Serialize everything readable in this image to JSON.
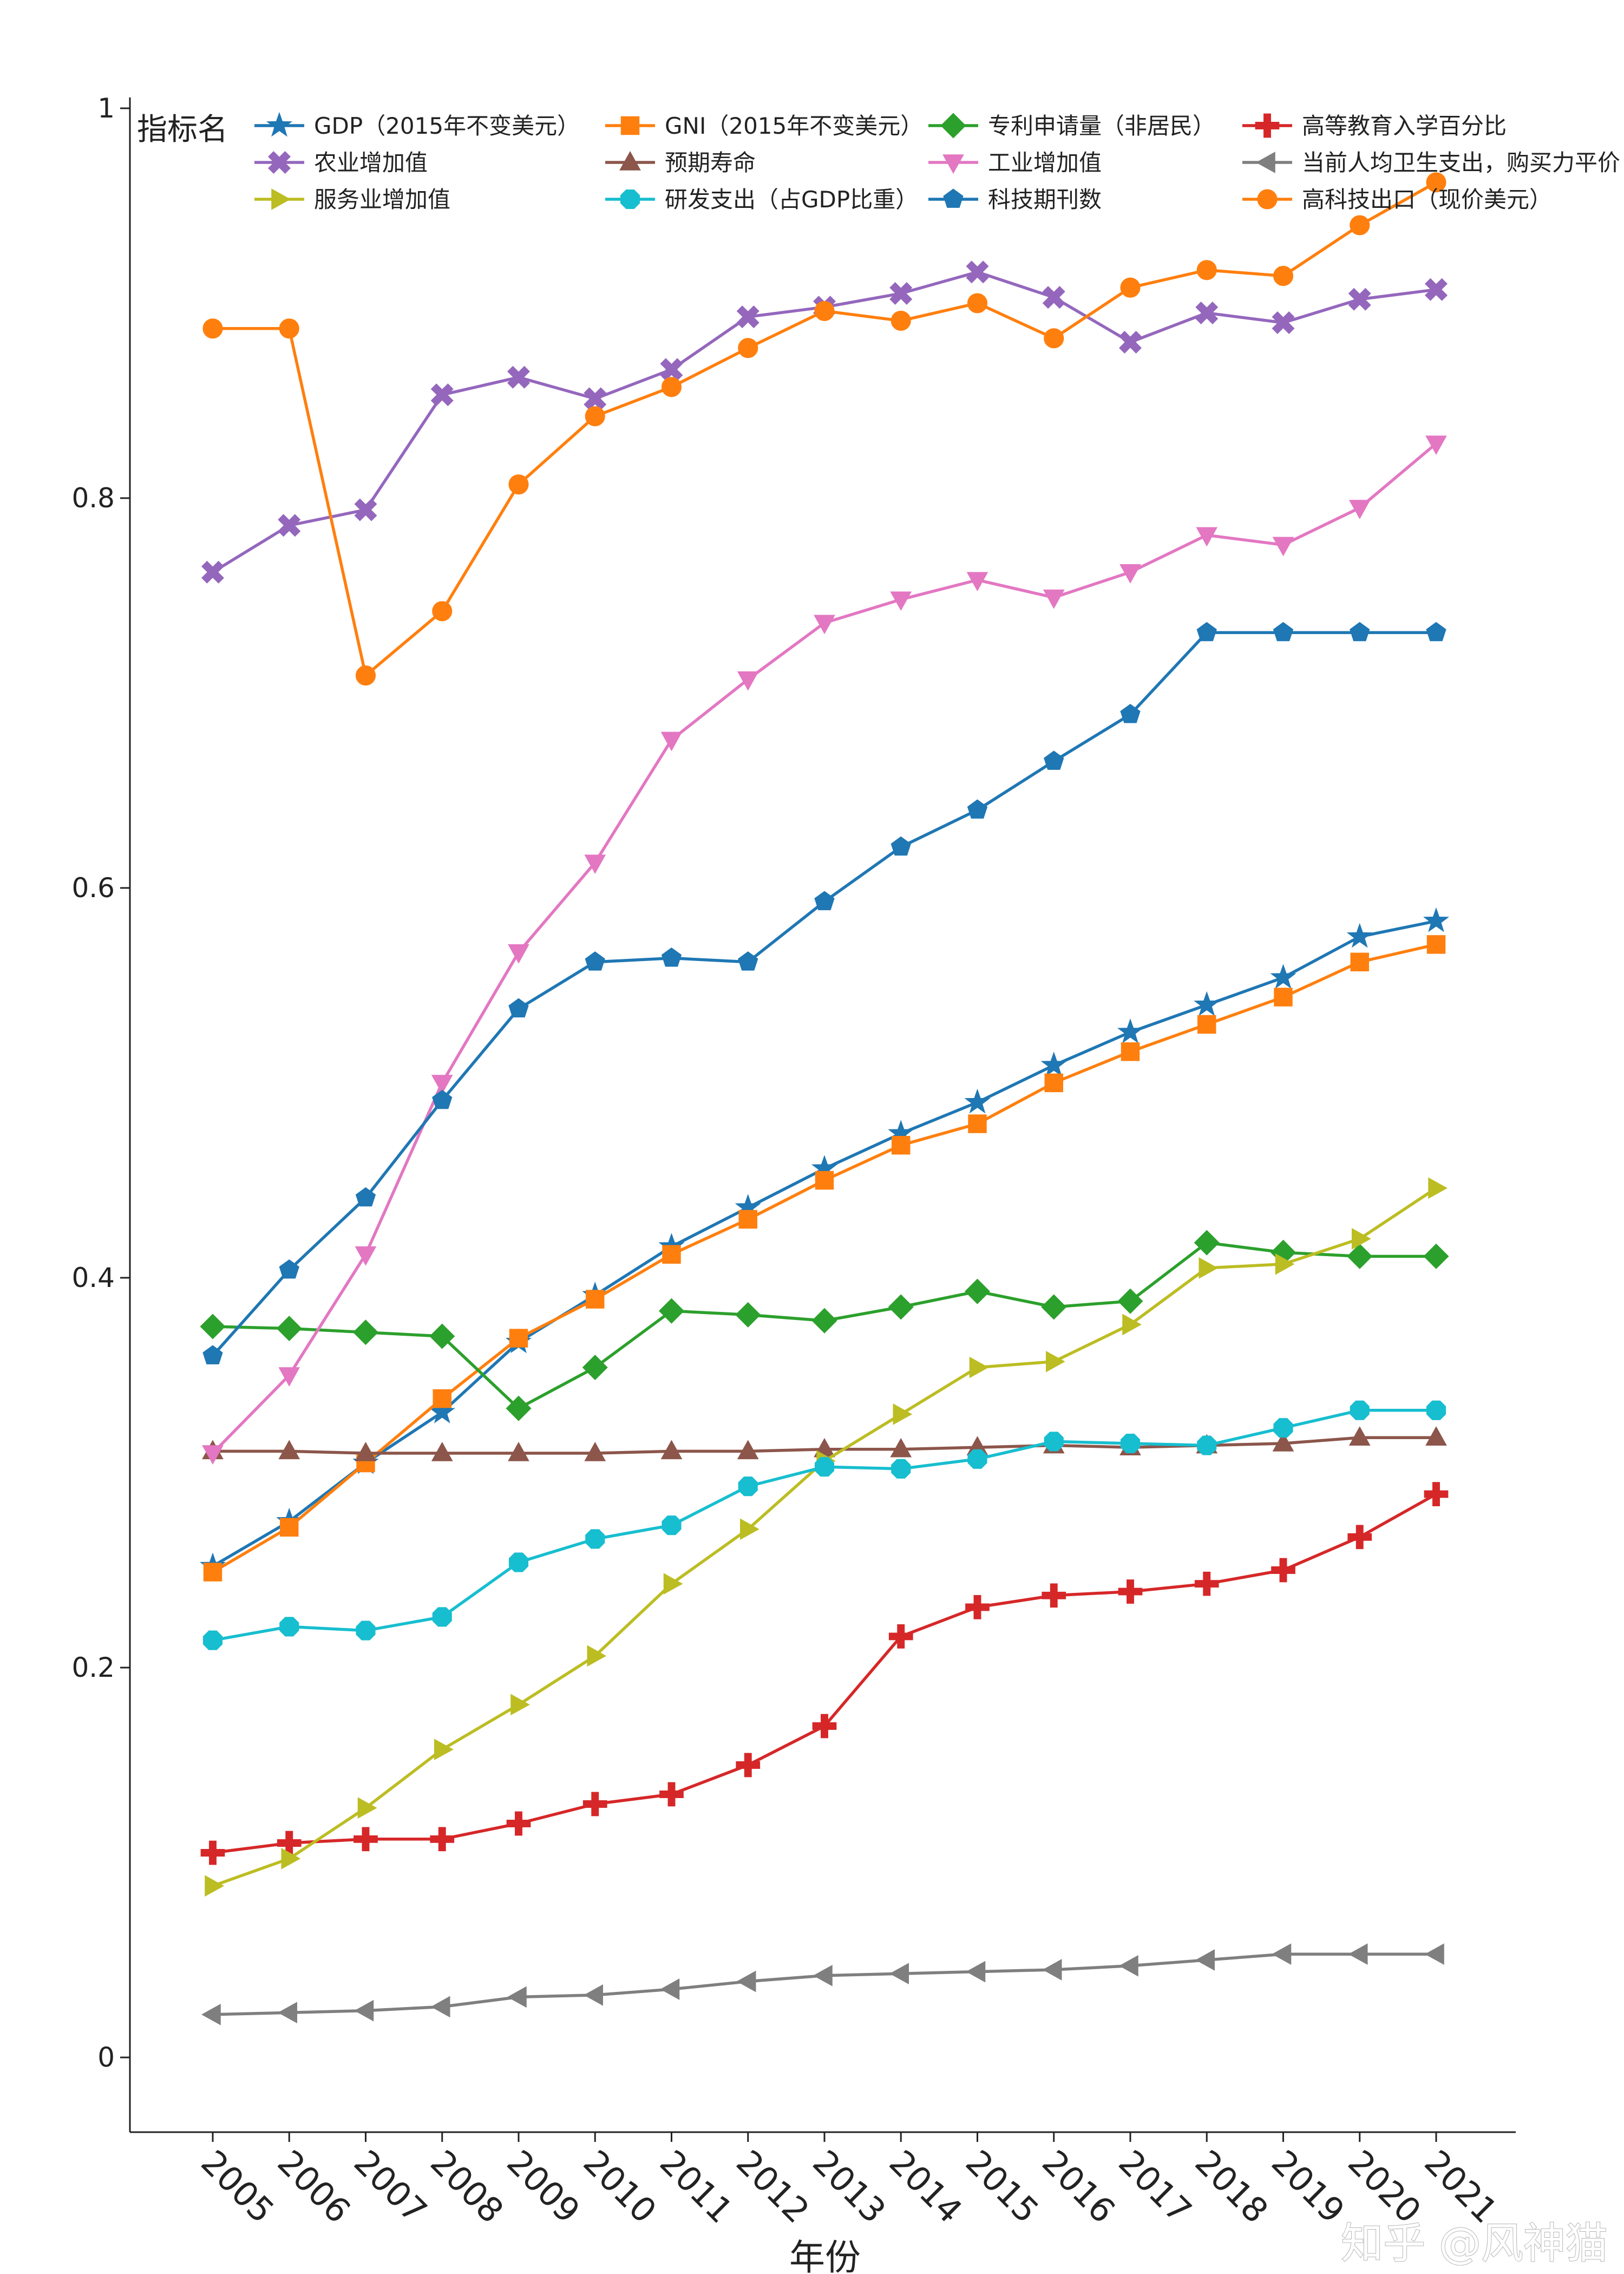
{
  "chart_data": {
    "type": "line",
    "xlabel": "年份",
    "ylabel": "",
    "ylim": [
      -0.037,
      1.0
    ],
    "yticks": [
      0,
      0.2,
      0.4,
      0.6,
      0.8,
      1
    ],
    "ytick_labels": [
      "0",
      "0.2",
      "0.4",
      "0.6",
      "0.8",
      "1"
    ],
    "x": [
      2005,
      2006,
      2007,
      2008,
      2009,
      2010,
      2011,
      2012,
      2013,
      2014,
      2015,
      2016,
      2017,
      2018,
      2019,
      2020,
      2021
    ],
    "xtick_labels": [
      "2005",
      "2006",
      "2007",
      "2008",
      "2009",
      "2010",
      "2011",
      "2012",
      "2013",
      "2014",
      "2015",
      "2016",
      "2017",
      "2018",
      "2019",
      "2020",
      "2021"
    ],
    "legend_title": "指标名",
    "legend_position": "top",
    "grid": false,
    "series": [
      {
        "name": "GDP（2015年不变美元）",
        "color": "#1f77b4",
        "marker": "star",
        "values": [
          0.252,
          0.275,
          0.305,
          0.331,
          0.367,
          0.391,
          0.416,
          0.436,
          0.456,
          0.474,
          0.49,
          0.509,
          0.526,
          0.54,
          0.554,
          0.575,
          0.583
        ]
      },
      {
        "name": "GNI（2015年不变美元）",
        "color": "#ff7f0e",
        "marker": "square",
        "values": [
          0.249,
          0.272,
          0.305,
          0.338,
          0.369,
          0.389,
          0.412,
          0.43,
          0.45,
          0.468,
          0.479,
          0.5,
          0.516,
          0.53,
          0.544,
          0.562,
          0.571
        ]
      },
      {
        "name": "专利申请量（非居民）",
        "color": "#2ca02c",
        "marker": "diamond",
        "values": [
          0.375,
          0.374,
          0.372,
          0.37,
          0.333,
          0.354,
          0.383,
          0.381,
          0.378,
          0.385,
          0.393,
          0.385,
          0.388,
          0.418,
          0.413,
          0.411,
          0.411
        ]
      },
      {
        "name": "高等教育入学百分比",
        "color": "#d62728",
        "marker": "plus",
        "values": [
          0.105,
          0.11,
          0.112,
          0.112,
          0.12,
          0.13,
          0.135,
          0.15,
          0.17,
          0.216,
          0.231,
          0.237,
          0.239,
          0.243,
          0.25,
          0.267,
          0.289
        ]
      },
      {
        "name": "农业增加值",
        "color": "#9467bd",
        "marker": "x",
        "values": [
          0.762,
          0.786,
          0.794,
          0.853,
          0.862,
          0.851,
          0.866,
          0.893,
          0.898,
          0.905,
          0.916,
          0.903,
          0.88,
          0.895,
          0.89,
          0.902,
          0.907
        ]
      },
      {
        "name": "预期寿命",
        "color": "#8c564b",
        "marker": "triangle-up",
        "values": [
          0.311,
          0.311,
          0.31,
          0.31,
          0.31,
          0.31,
          0.311,
          0.311,
          0.312,
          0.312,
          0.313,
          0.314,
          0.313,
          0.314,
          0.315,
          0.318,
          0.318
        ]
      },
      {
        "name": "工业增加值",
        "color": "#e377c2",
        "marker": "triangle-down",
        "values": [
          0.31,
          0.35,
          0.412,
          0.5,
          0.567,
          0.613,
          0.676,
          0.707,
          0.736,
          0.748,
          0.758,
          0.749,
          0.762,
          0.781,
          0.776,
          0.795,
          0.828
        ]
      },
      {
        "name": "当前人均卫生支出，购买力平价（当前国际美元）",
        "color": "#7f7f7f",
        "marker": "triangle-left",
        "values": [
          0.022,
          0.023,
          0.024,
          0.026,
          0.031,
          0.032,
          0.035,
          0.039,
          0.042,
          0.043,
          0.044,
          0.045,
          0.047,
          0.05,
          0.053,
          0.053,
          0.053
        ]
      },
      {
        "name": "服务业增加值",
        "color": "#bcbd22",
        "marker": "triangle-right",
        "values": [
          0.088,
          0.102,
          0.128,
          0.158,
          0.181,
          0.206,
          0.243,
          0.271,
          0.306,
          0.33,
          0.354,
          0.357,
          0.376,
          0.405,
          0.407,
          0.42,
          0.446
        ]
      },
      {
        "name": "研发支出（占GDP比重）",
        "color": "#17becf",
        "marker": "octagon",
        "values": [
          0.214,
          0.221,
          0.219,
          0.226,
          0.254,
          0.266,
          0.273,
          0.293,
          0.303,
          0.302,
          0.307,
          0.316,
          0.315,
          0.314,
          0.323,
          0.332,
          0.332
        ]
      },
      {
        "name": "科技期刊数",
        "color": "#1f77b4",
        "marker": "pentagon",
        "values": [
          0.36,
          0.404,
          0.441,
          0.491,
          0.538,
          0.562,
          0.564,
          0.562,
          0.593,
          0.621,
          0.64,
          0.665,
          0.689,
          0.731,
          0.731,
          0.731,
          0.731
        ]
      },
      {
        "name": "高科技出口（现价美元）",
        "color": "#ff7f0e",
        "marker": "circle",
        "values": [
          0.887,
          0.887,
          0.709,
          0.742,
          0.807,
          0.842,
          0.857,
          0.877,
          0.896,
          0.891,
          0.9,
          0.882,
          0.908,
          0.917,
          0.914,
          0.94,
          0.962
        ]
      }
    ]
  },
  "watermark": "知乎 @风神猫"
}
